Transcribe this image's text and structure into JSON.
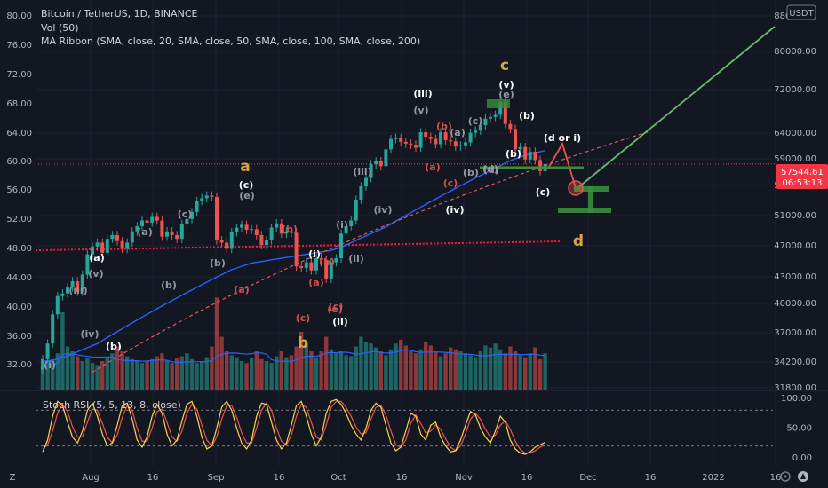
{
  "chart_data": {
    "type": "candlestick",
    "symbol_line": "Bitcoin / TetherUS, 1D, BINANCE",
    "indicator_lines": [
      "Vol (50)",
      "MA Ribbon (SMA, close, 20, SMA, close, 50, SMA, close, 100, SMA, close, 200)"
    ],
    "currency_badge": "USDT",
    "last_price": "57544.61",
    "countdown": "06:53:13",
    "left_price_ticks": [
      "80.00",
      "76.00",
      "72.00",
      "68.00",
      "64.00",
      "60.00",
      "56.00",
      "52.00",
      "48.00",
      "44.00",
      "40.00",
      "36.00",
      "32.00"
    ],
    "right_price_ticks": [
      "88000.00",
      "80000.00",
      "72000.00",
      "64000.00",
      "59000.00",
      "55000.00",
      "51000.00",
      "47000.00",
      "43000.00",
      "40000.00",
      "37000.00",
      "34200.00",
      "31800.00"
    ],
    "x_ticks": [
      "Aug",
      "16",
      "Sep",
      "16",
      "Oct",
      "16",
      "Nov",
      "16",
      "Dec",
      "16",
      "2022",
      "16"
    ],
    "stoch": {
      "title": "Stoch RSI (5, 5, 13, 8, close)",
      "ticks": [
        "100.00",
        "50.00",
        "0.00"
      ],
      "upper_band": 80,
      "lower_band": 20
    },
    "close_series": [
      33000,
      34500,
      37500,
      39500,
      39800,
      40500,
      41200,
      40000,
      42000,
      44500,
      45500,
      46000,
      44700,
      46500,
      47000,
      46200,
      45200,
      46000,
      47500,
      48200,
      49000,
      48700,
      49500,
      49000,
      46800,
      47500,
      47000,
      46500,
      48500,
      49200,
      50200,
      51800,
      52200,
      52600,
      52400,
      46300,
      46000,
      45200,
      47400,
      48000,
      48400,
      47700,
      47800,
      47000,
      45700,
      46300,
      48000,
      48600,
      47200,
      47500,
      47300,
      43000,
      42800,
      43500,
      42500,
      44000,
      43800,
      41500,
      43500,
      44000,
      47200,
      48200,
      49000,
      52000,
      54000,
      55300,
      57500,
      58000,
      57200,
      60000,
      61800,
      62000,
      61300,
      61000,
      60800,
      60300,
      63000,
      62200,
      61800,
      60900,
      63000,
      61600,
      61400,
      60500,
      60700,
      61200,
      62900,
      63300,
      64300,
      65500,
      65800,
      66200,
      68700,
      64500,
      63600,
      60000,
      60400,
      58300,
      59600,
      58200,
      56400,
      57544
    ],
    "volume_scale_max": 100,
    "volume_series": [
      25,
      30,
      32,
      38,
      80,
      45,
      40,
      35,
      30,
      33,
      28,
      26,
      30,
      34,
      38,
      45,
      40,
      35,
      32,
      30,
      28,
      30,
      32,
      35,
      38,
      30,
      28,
      33,
      35,
      38,
      32,
      28,
      30,
      34,
      45,
      95,
      55,
      40,
      36,
      34,
      30,
      28,
      33,
      40,
      32,
      30,
      28,
      35,
      40,
      34,
      36,
      45,
      60,
      48,
      40,
      34,
      40,
      55,
      42,
      38,
      40,
      36,
      35,
      45,
      55,
      50,
      48,
      44,
      40,
      36,
      42,
      48,
      52,
      46,
      40,
      38,
      42,
      50,
      46,
      40,
      35,
      38,
      44,
      42,
      40,
      38,
      36,
      34,
      40,
      46,
      44,
      48,
      42,
      38,
      45,
      40,
      36,
      34,
      38,
      44,
      32,
      38
    ],
    "stoch_k_series": [
      10,
      30,
      70,
      95,
      88,
      60,
      35,
      25,
      45,
      80,
      92,
      70,
      40,
      20,
      25,
      55,
      88,
      92,
      65,
      30,
      18,
      35,
      70,
      90,
      75,
      40,
      20,
      30,
      62,
      90,
      95,
      70,
      35,
      15,
      20,
      50,
      85,
      95,
      80,
      50,
      25,
      15,
      30,
      70,
      92,
      90,
      60,
      30,
      15,
      25,
      55,
      88,
      95,
      70,
      40,
      20,
      35,
      75,
      95,
      98,
      90,
      75,
      55,
      40,
      30,
      50,
      80,
      92,
      85,
      55,
      25,
      12,
      18,
      45,
      75,
      70,
      40,
      30,
      55,
      60,
      35,
      20,
      10,
      12,
      30,
      55,
      78,
      72,
      50,
      35,
      25,
      45,
      70,
      60,
      30,
      15,
      8,
      6,
      10,
      18,
      22,
      26
    ],
    "stoch_d_series": [
      15,
      22,
      45,
      75,
      90,
      78,
      52,
      35,
      35,
      60,
      82,
      80,
      58,
      35,
      25,
      38,
      68,
      88,
      80,
      50,
      28,
      28,
      50,
      78,
      82,
      60,
      35,
      28,
      45,
      75,
      90,
      82,
      55,
      30,
      20,
      35,
      65,
      88,
      88,
      68,
      42,
      25,
      25,
      50,
      80,
      92,
      80,
      50,
      28,
      22,
      38,
      70,
      90,
      85,
      60,
      35,
      30,
      55,
      85,
      95,
      95,
      85,
      70,
      52,
      40,
      42,
      65,
      85,
      88,
      72,
      45,
      22,
      18,
      30,
      58,
      72,
      58,
      42,
      45,
      55,
      48,
      32,
      18,
      12,
      20,
      40,
      65,
      75,
      65,
      48,
      35,
      38,
      55,
      62,
      48,
      28,
      14,
      8,
      8,
      12,
      18,
      22
    ],
    "ma_fast_series": [
      31800,
      32300,
      33000,
      34200,
      35200,
      36200,
      37200,
      38100,
      39000,
      40000,
      41000,
      41800,
      42500,
      43300,
      44000,
      44700,
      45300,
      45800,
      46200,
      46600,
      47000,
      47300,
      47500,
      47800,
      48000,
      48200,
      48400,
      48600,
      48800,
      49000,
      49300,
      49600,
      49800,
      49900,
      50000,
      49800,
      49500,
      49000,
      48700,
      48300,
      47900,
      47600,
      47400,
      47200,
      47100,
      46900,
      46800,
      46700,
      46600,
      46500,
      46300,
      46000,
      45700,
      45500,
      45300,
      45200,
      45200,
      45300,
      45600,
      46000,
      46500,
      47000,
      47600,
      48300,
      49000,
      49800,
      50800,
      51700,
      52600,
      53600,
      54600,
      55400,
      56100,
      56800,
      57400,
      57900,
      58400,
      58900,
      59300,
      59600,
      59900,
      60200,
      60400,
      60600,
      60800,
      61000,
      61200,
      61400,
      61600,
      61800,
      62000,
      62300,
      62600,
      62800,
      62900,
      62800,
      62600,
      62400,
      62300,
      62100,
      61900,
      61800
    ],
    "ma_slow_series": [
      32800,
      32850,
      32900,
      33000,
      33150,
      33300,
      33500,
      33700,
      33900,
      34100,
      34300,
      34500,
      34800,
      35100,
      35400,
      35700,
      36000,
      36300,
      36600,
      36900,
      37200,
      37500,
      37800,
      38100,
      38400,
      38700,
      39000,
      39300,
      39600,
      39900,
      40200,
      40500,
      40800,
      41100,
      41400,
      41700,
      42000,
      42300,
      42600,
      42800,
      43000,
      43200,
      43400,
      43500,
      43600,
      43700,
      43800,
      43900,
      44000,
      44100,
      44200,
      44300,
      44400,
      44500,
      44600,
      44700,
      44800,
      44900,
      45000,
      45200,
      45400,
      45700,
      46000,
      46300,
      46600,
      46900,
      47200,
      47500,
      47800,
      48100,
      48500,
      48900,
      49300,
      49700,
      50100,
      50500,
      50900,
      51300,
      51700,
      52100,
      52500,
      52900,
      53300,
      53700,
      54100,
      54500,
      54900,
      55300,
      55700,
      56100,
      56500,
      56900,
      57300,
      57700,
      58100,
      58400,
      58700,
      59000,
      59200,
      59400,
      59600,
      59800
    ],
    "ma_200_level": 45700,
    "support_base": 31800,
    "support_slope_per_bar": 280,
    "annotations": {
      "big": [
        "a",
        "b",
        "c",
        "d"
      ],
      "white": [
        "(a)",
        "(c)",
        "(i)",
        "(ii)",
        "(iii)",
        "(iv)",
        "(v)",
        "(b)",
        "(a)",
        "(c)",
        "(d or i)",
        "(b)"
      ],
      "grey": [
        "(i)",
        "(iii)",
        "(v)",
        "(iv)",
        "(b)",
        "(a)",
        "(b)",
        "(c)",
        "(d)",
        "(e)",
        "(i)",
        "(ii)",
        "(iii)",
        "(iv)",
        "(v)",
        "(a)",
        "(c)",
        "(b)",
        "(d)",
        "(e)"
      ],
      "red": [
        "(a)",
        "(b)",
        "(c)",
        "(a)",
        "(b)",
        "(c)",
        "(e)",
        "(a)",
        "(b)",
        "(c)"
      ]
    },
    "colors": {
      "background": "#131722",
      "up": "#26a69a",
      "down": "#ef5350",
      "ma_fast": "#2962ff",
      "ma_slow": "#f5a623",
      "ma_200": "#ff1744",
      "forecast": "#66bb6a",
      "stoch_k": "#ffd54f",
      "stoch_d": "#ef5350",
      "box": "#388e3c"
    }
  }
}
